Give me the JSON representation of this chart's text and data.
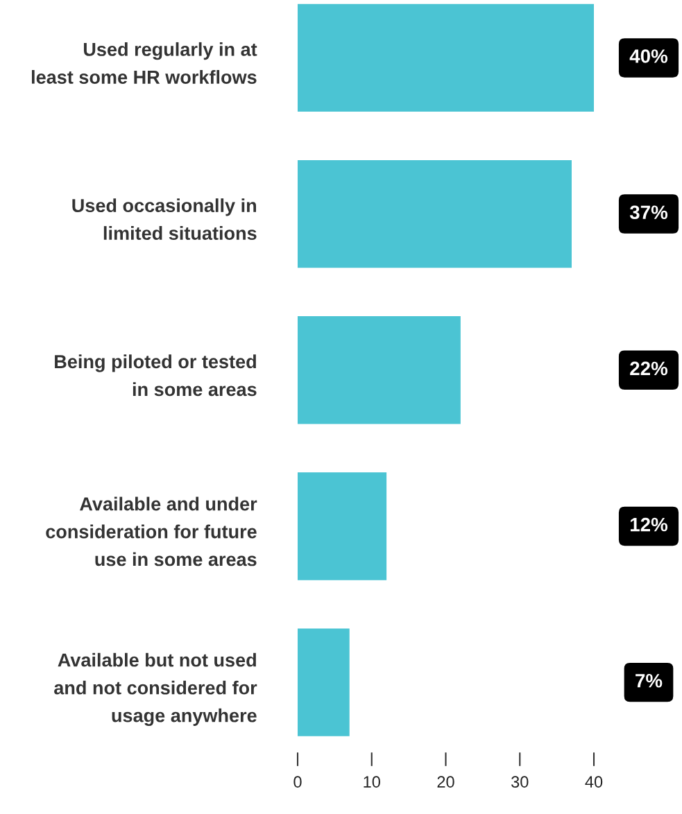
{
  "chart_data": {
    "type": "bar",
    "orientation": "horizontal",
    "categories": [
      "Used regularly in at least some HR workflows",
      "Used occasionally in limited situations",
      "Being piloted or tested in some areas",
      "Available and under consideration for future use in some areas",
      "Available but not used and not considered for usage anywhere"
    ],
    "values": [
      40,
      37,
      22,
      12,
      7
    ],
    "value_labels": [
      "40%",
      "37%",
      "22%",
      "12%",
      "7%"
    ],
    "color": "#4bc4d3",
    "xlim": [
      0,
      40
    ],
    "xticks": [
      0,
      10,
      20,
      30,
      40
    ],
    "grid": false,
    "legend": false
  }
}
